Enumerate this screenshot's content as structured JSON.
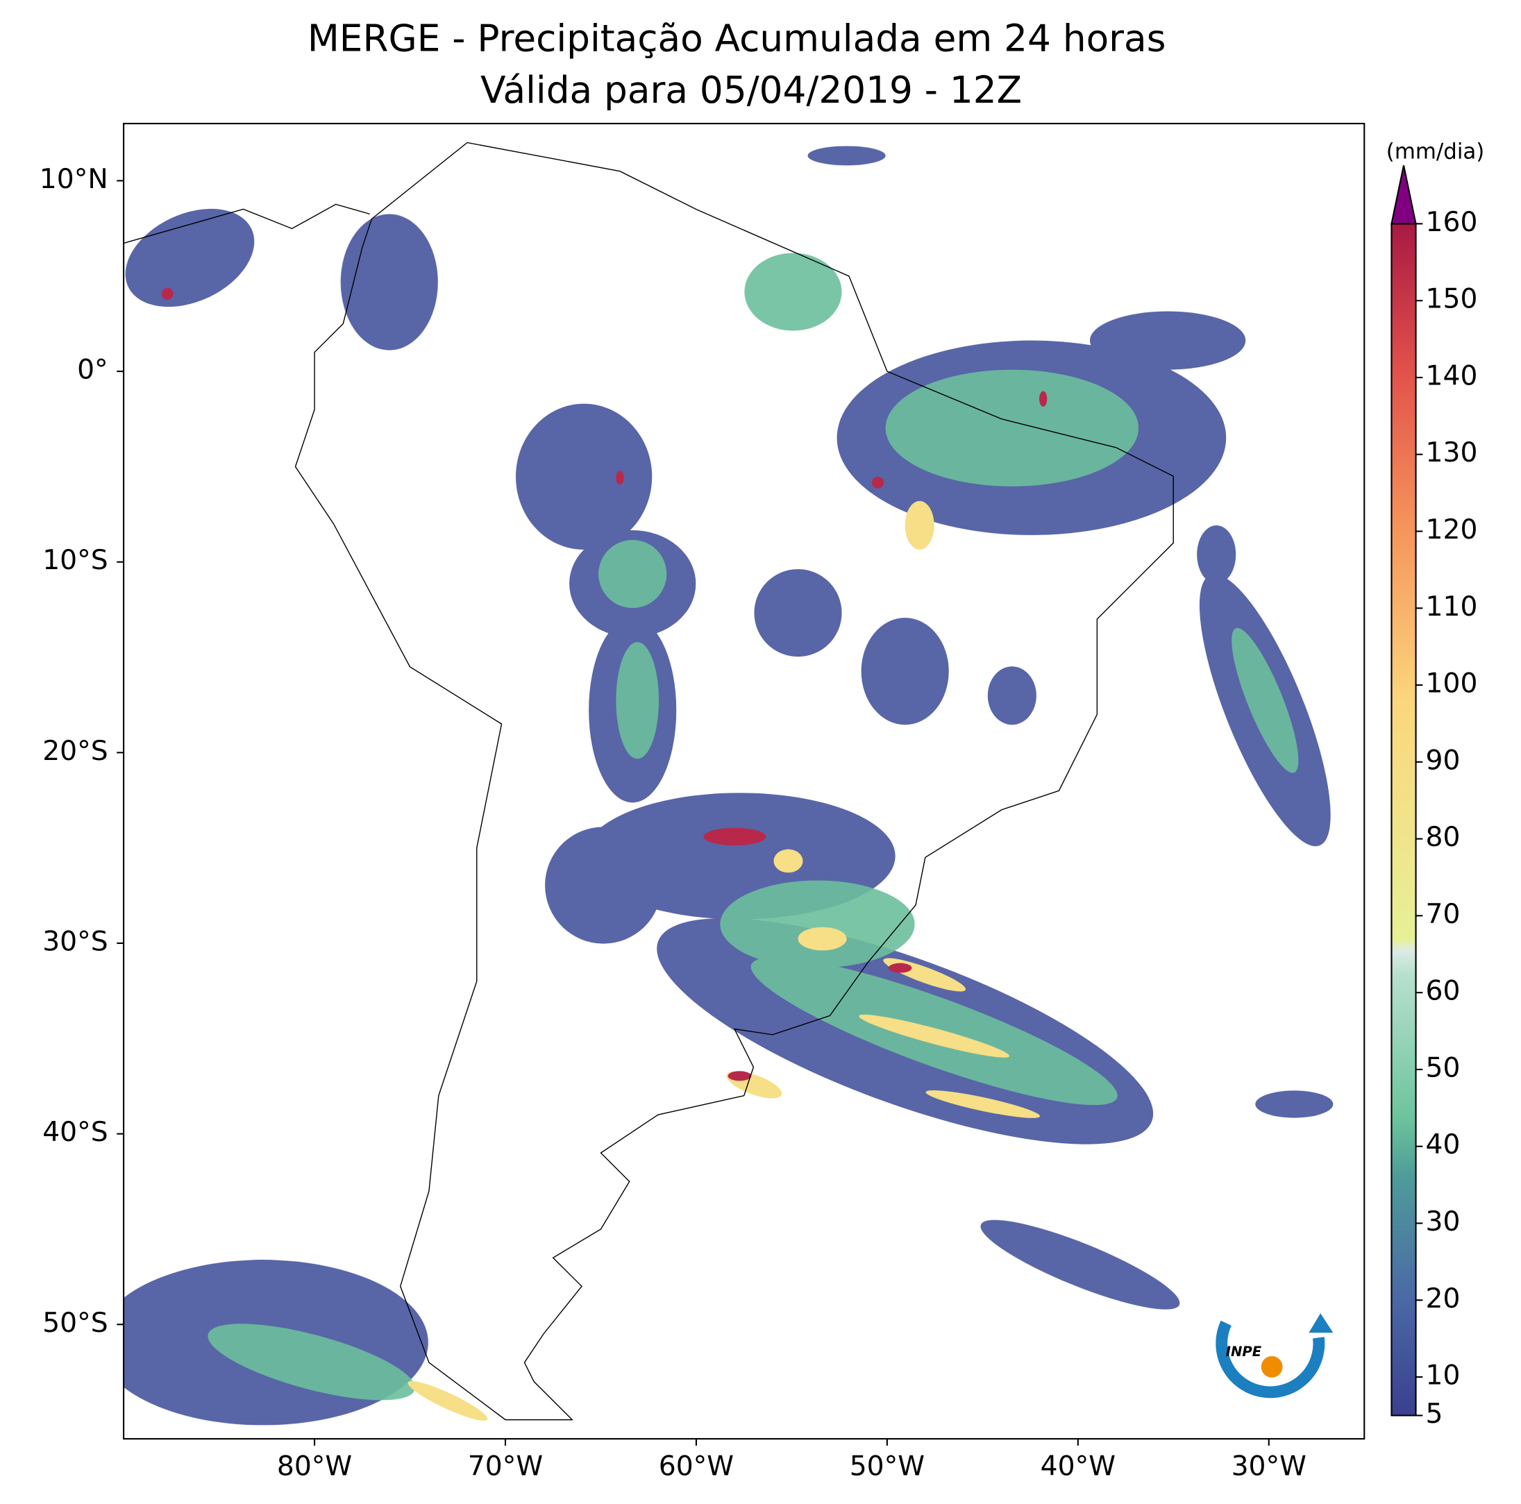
{
  "title": "MERGE - Precipitação Acumulada em 24 horas",
  "subtitle": "Válida para 05/04/2019 - 12Z",
  "map": {
    "xlim": [
      -90,
      -25
    ],
    "ylim": [
      -56,
      13
    ],
    "xticks": [
      {
        "value": -80,
        "label": "80°W"
      },
      {
        "value": -70,
        "label": "70°W"
      },
      {
        "value": -60,
        "label": "60°W"
      },
      {
        "value": -50,
        "label": "50°W"
      },
      {
        "value": -40,
        "label": "40°W"
      },
      {
        "value": -30,
        "label": "30°W"
      }
    ],
    "yticks": [
      {
        "value": 10,
        "label": "10°N"
      },
      {
        "value": 0,
        "label": "0°"
      },
      {
        "value": -10,
        "label": "10°S"
      },
      {
        "value": -20,
        "label": "20°S"
      },
      {
        "value": -30,
        "label": "30°S"
      },
      {
        "value": -40,
        "label": "40°S"
      },
      {
        "value": -50,
        "label": "50°S"
      }
    ]
  },
  "colorbar": {
    "label": "(mm/dia)",
    "lim": [
      5,
      160
    ],
    "ticks": [
      5,
      10,
      20,
      30,
      40,
      50,
      60,
      70,
      80,
      90,
      100,
      110,
      120,
      130,
      140,
      150,
      160
    ],
    "extend": "max"
  },
  "logo": "INPE"
}
